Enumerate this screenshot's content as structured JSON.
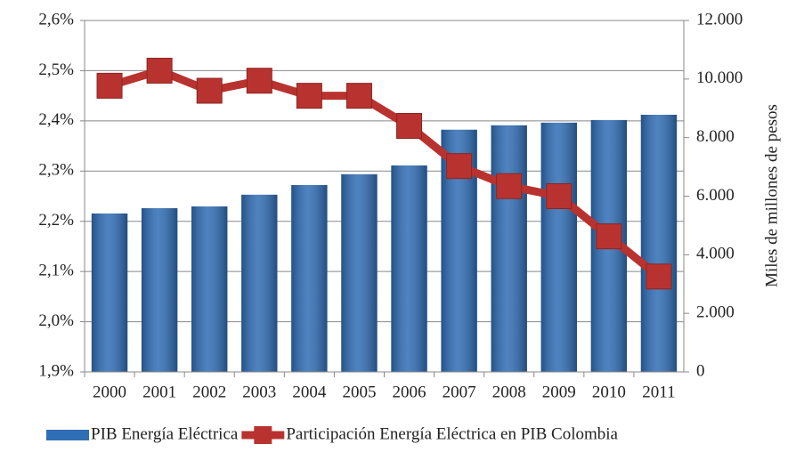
{
  "chart_data": {
    "type": "combo",
    "categories": [
      "2000",
      "2001",
      "2002",
      "2003",
      "2004",
      "2005",
      "2006",
      "2007",
      "2008",
      "2009",
      "2010",
      "2011"
    ],
    "series": [
      {
        "name": "PIB Energía Eléctrica",
        "type": "bar",
        "axis": "y2",
        "color": "#2f6db5",
        "values": [
          5410,
          5590,
          5650,
          6050,
          6380,
          6750,
          7050,
          8270,
          8420,
          8510,
          8600,
          8780
        ]
      },
      {
        "name": "Participación Energía Eléctrica en PIB Colombia",
        "type": "line",
        "axis": "y",
        "color": "#b8332f",
        "values": [
          2.47,
          2.5,
          2.46,
          2.48,
          2.45,
          2.45,
          2.39,
          2.31,
          2.27,
          2.25,
          2.17,
          2.09
        ]
      }
    ],
    "ylim": [
      1.9,
      2.6
    ],
    "yticks": [
      {
        "value": 1.9,
        "label": "1,9%"
      },
      {
        "value": 2.0,
        "label": "2,0%"
      },
      {
        "value": 2.1,
        "label": "2,1%"
      },
      {
        "value": 2.2,
        "label": "2,2%"
      },
      {
        "value": 2.3,
        "label": "2,3%"
      },
      {
        "value": 2.4,
        "label": "2,4%"
      },
      {
        "value": 2.5,
        "label": "2,5%"
      },
      {
        "value": 2.6,
        "label": "2,6%"
      }
    ],
    "y2lim": [
      0,
      12000
    ],
    "y2ticks": [
      0,
      {
        "value": 2000,
        "label": "2.000"
      },
      {
        "value": 4000,
        "label": "4.000"
      },
      {
        "value": 6000,
        "label": "6.000"
      },
      {
        "value": 8000,
        "label": "8.000"
      },
      {
        "value": 10000,
        "label": "10.000"
      },
      {
        "value": 12000,
        "label": "12.000"
      }
    ],
    "y2label": "Miles de millones de pesos",
    "grid": true,
    "legend": "bottom"
  }
}
